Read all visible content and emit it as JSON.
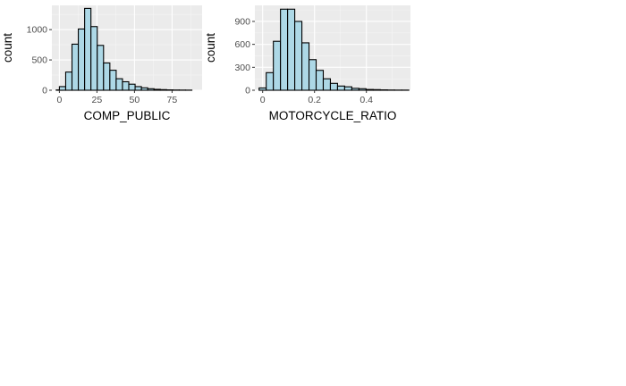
{
  "chart_data": [
    {
      "type": "bar",
      "title": "",
      "xlabel": "COMP_PUBLIC",
      "ylabel": "count",
      "xlim": [
        -5,
        95
      ],
      "ylim": [
        0,
        1400
      ],
      "xticks": [
        0,
        25,
        50,
        75
      ],
      "yticks": [
        0,
        500,
        1000
      ],
      "bin_width": 4.2,
      "bins": [
        {
          "x": 0,
          "count": 5
        },
        {
          "x": 2.1,
          "count": 60
        },
        {
          "x": 6.3,
          "count": 300
        },
        {
          "x": 10.5,
          "count": 760
        },
        {
          "x": 14.7,
          "count": 1010
        },
        {
          "x": 18.9,
          "count": 1350
        },
        {
          "x": 23.1,
          "count": 1050
        },
        {
          "x": 27.3,
          "count": 740
        },
        {
          "x": 31.5,
          "count": 450
        },
        {
          "x": 35.7,
          "count": 330
        },
        {
          "x": 39.9,
          "count": 190
        },
        {
          "x": 44.1,
          "count": 140
        },
        {
          "x": 48.3,
          "count": 100
        },
        {
          "x": 52.5,
          "count": 60
        },
        {
          "x": 56.7,
          "count": 40
        },
        {
          "x": 60.9,
          "count": 25
        },
        {
          "x": 65.1,
          "count": 15
        },
        {
          "x": 69.3,
          "count": 10
        },
        {
          "x": 73.5,
          "count": 6
        },
        {
          "x": 77.7,
          "count": 4
        },
        {
          "x": 81.9,
          "count": 3
        },
        {
          "x": 86.1,
          "count": 2
        }
      ],
      "fill": "#add8e6",
      "outline": "#000000",
      "panel_bg": "#ebebeb",
      "grid": true
    },
    {
      "type": "bar",
      "title": "",
      "xlabel": "MOTORCYCLE_RATIO",
      "ylabel": "count",
      "xlim": [
        -0.03,
        0.57
      ],
      "ylim": [
        0,
        1110
      ],
      "xticks": [
        0.0,
        0.2,
        0.4
      ],
      "yticks": [
        0,
        300,
        600,
        900
      ],
      "bin_width": 0.0275,
      "bins": [
        {
          "x": 0.0,
          "count": 30
        },
        {
          "x": 0.0275,
          "count": 230
        },
        {
          "x": 0.055,
          "count": 640
        },
        {
          "x": 0.0825,
          "count": 1060
        },
        {
          "x": 0.11,
          "count": 1060
        },
        {
          "x": 0.1375,
          "count": 900
        },
        {
          "x": 0.165,
          "count": 620
        },
        {
          "x": 0.1925,
          "count": 400
        },
        {
          "x": 0.22,
          "count": 260
        },
        {
          "x": 0.2475,
          "count": 150
        },
        {
          "x": 0.275,
          "count": 90
        },
        {
          "x": 0.3025,
          "count": 55
        },
        {
          "x": 0.33,
          "count": 45
        },
        {
          "x": 0.3575,
          "count": 25
        },
        {
          "x": 0.385,
          "count": 20
        },
        {
          "x": 0.4125,
          "count": 10
        },
        {
          "x": 0.44,
          "count": 8
        },
        {
          "x": 0.4675,
          "count": 5
        },
        {
          "x": 0.495,
          "count": 3
        },
        {
          "x": 0.5225,
          "count": 2
        },
        {
          "x": 0.55,
          "count": 2
        }
      ],
      "fill": "#add8e6",
      "outline": "#000000",
      "panel_bg": "#ebebeb",
      "grid": true
    }
  ]
}
